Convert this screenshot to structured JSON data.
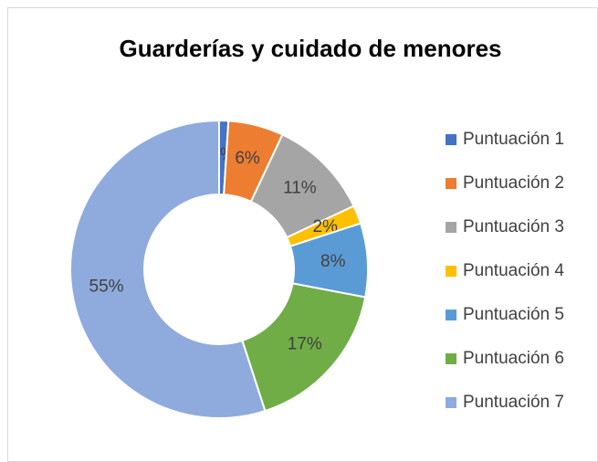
{
  "chart_data": {
    "type": "donut",
    "title": "Guarderías y cuidado de menores",
    "categories": [
      "Puntuación 1",
      "Puntuación 2",
      "Puntuación 3",
      "Puntuación 4",
      "Puntuación 5",
      "Puntuación 6",
      "Puntuación 7"
    ],
    "values": [
      1,
      6,
      11,
      2,
      8,
      17,
      55
    ],
    "value_labels": [
      "1%",
      "6%",
      "11%",
      "2%",
      "8%",
      "17%",
      "55%"
    ],
    "colors": [
      "#4472c4",
      "#ed7d31",
      "#a5a5a5",
      "#ffc000",
      "#5b9bd5",
      "#70ad47",
      "#8faadc"
    ],
    "legend": "right"
  }
}
